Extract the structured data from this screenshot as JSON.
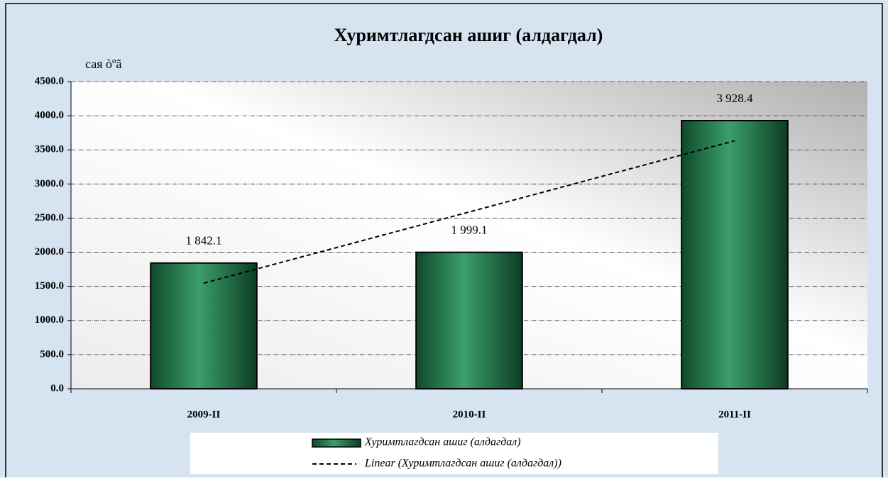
{
  "chart_data": {
    "type": "bar",
    "title": "Хуримтлагдсан ашиг (алдагдал)",
    "y_label": "сая  òºã",
    "categories": [
      "2009-II",
      "2010-II",
      "2011-II"
    ],
    "series": [
      {
        "name": "Хуримтлагдсан ашиг (алдагдал)",
        "color": "#1f7a4a",
        "values": [
          1842.1,
          1999.1,
          3928.4
        ],
        "value_labels": [
          "1 842.1",
          "1 999.1",
          "3 928.4"
        ]
      },
      {
        "name": "Linear (Хуримтлагдсан ашиг (алдагдал))",
        "color": "#000000",
        "type": "line",
        "values": [
          1546.7,
          2589.9,
          3633.0
        ]
      }
    ],
    "ylim": [
      0,
      4500
    ],
    "yticks": [
      {
        "value": 0,
        "label": "0.0"
      },
      {
        "value": 500,
        "label": "500.0"
      },
      {
        "value": 1000,
        "label": "1000.0"
      },
      {
        "value": 1500,
        "label": "1500.0"
      },
      {
        "value": 2000,
        "label": "2000.0"
      },
      {
        "value": 2500,
        "label": "2500.0"
      },
      {
        "value": 3000,
        "label": "3000.0"
      },
      {
        "value": 3500,
        "label": "3500.0"
      },
      {
        "value": 4000,
        "label": "4000.0"
      },
      {
        "value": 4500,
        "label": "4500.0"
      }
    ],
    "grid": true,
    "legend": "bottom"
  }
}
